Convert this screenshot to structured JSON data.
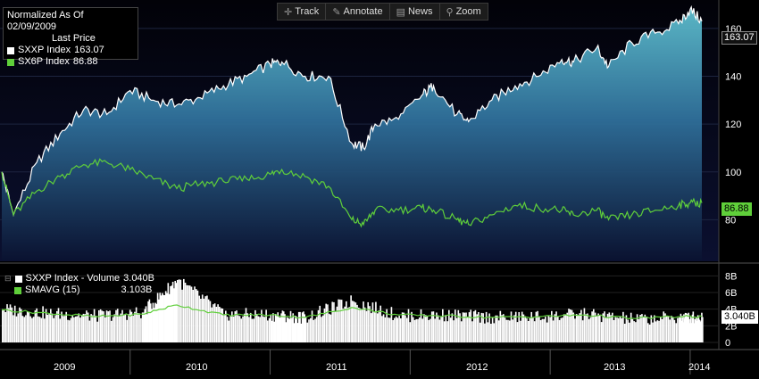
{
  "toolbar": {
    "track": "Track",
    "annotate": "Annotate",
    "news": "News",
    "zoom": "Zoom"
  },
  "legend": {
    "title": "Normalized As Of 02/09/2009",
    "subtitle": "Last Price",
    "entries": [
      {
        "label": "SXXP Index",
        "value": "163.07",
        "color": "#ffffff"
      },
      {
        "label": "SX6P Index",
        "value": "86.88",
        "color": "#5fcf3a"
      }
    ]
  },
  "volume_legend": {
    "entries": [
      {
        "label": "SXXP Index - Volume",
        "value": "3.040B",
        "color": "#ffffff"
      },
      {
        "label": "SMAVG (15)",
        "value": "3.103B",
        "color": "#5fcf3a"
      }
    ]
  },
  "chart_data": [
    {
      "type": "area",
      "ylim": [
        63,
        170
      ],
      "y_ticks": [
        80,
        100,
        120,
        140,
        160
      ],
      "x_year_labels": [
        "2009",
        "2010",
        "2011",
        "2012",
        "2013",
        "2014"
      ],
      "grid": true,
      "last_labels": [
        "163.07",
        "86.88"
      ],
      "x": [
        "2009-02",
        "2009-03",
        "2009-05",
        "2009-07",
        "2009-09",
        "2009-11",
        "2010-01",
        "2010-03",
        "2010-05",
        "2010-07",
        "2010-09",
        "2010-11",
        "2011-01",
        "2011-02",
        "2011-04",
        "2011-06",
        "2011-08",
        "2011-09",
        "2011-10",
        "2011-12",
        "2012-02",
        "2012-03",
        "2012-05",
        "2012-06",
        "2012-08",
        "2012-10",
        "2012-12",
        "2013-02",
        "2013-03",
        "2013-05",
        "2013-06",
        "2013-08",
        "2013-10",
        "2013-12",
        "2014-01",
        "2014-02"
      ],
      "series": [
        {
          "name": "SXXP Index",
          "color": "#ffffff",
          "values": [
            100,
            82,
            104,
            116,
            126,
            124,
            134,
            130,
            128,
            131,
            136,
            140,
            145,
            146,
            140,
            140,
            112,
            110,
            120,
            122,
            132,
            136,
            124,
            121,
            130,
            136,
            140,
            147,
            146,
            152,
            144,
            154,
            158,
            162,
            168,
            163
          ]
        },
        {
          "name": "SX6P Index",
          "color": "#5fcf3a",
          "values": [
            100,
            82,
            92,
            98,
            103,
            104,
            101,
            97,
            93,
            95,
            96,
            97,
            99,
            101,
            98,
            94,
            80,
            78,
            84,
            84,
            85,
            84,
            80,
            78,
            82,
            86,
            85,
            84,
            82,
            84,
            80,
            82,
            84,
            86,
            87,
            87
          ]
        }
      ]
    },
    {
      "type": "bar",
      "ylim": [
        0,
        9
      ],
      "y_ticks": [
        "0",
        "2B",
        "4B",
        "6B",
        "8B"
      ],
      "last_label": "3.040B",
      "x": [
        "2009-02",
        "2009-06",
        "2009-10",
        "2010-02",
        "2010-05",
        "2010-09",
        "2011-01",
        "2011-04",
        "2011-08",
        "2011-12",
        "2012-04",
        "2012-08",
        "2012-12",
        "2013-04",
        "2013-08",
        "2013-12",
        "2014-02"
      ],
      "series": [
        {
          "name": "SXXP Index - Volume",
          "color": "#ffffff",
          "values": [
            4.0,
            3.5,
            3.2,
            3.6,
            7.5,
            3.4,
            3.3,
            3.0,
            5.0,
            3.2,
            3.3,
            3.0,
            3.1,
            3.4,
            2.8,
            3.0,
            3.04
          ]
        },
        {
          "name": "SMAVG (15)",
          "color": "#5fcf3a",
          "values": [
            3.9,
            3.5,
            3.1,
            3.4,
            4.5,
            3.3,
            3.3,
            3.0,
            4.2,
            3.3,
            3.2,
            3.0,
            3.1,
            3.3,
            2.9,
            3.1,
            3.1
          ]
        }
      ]
    }
  ]
}
